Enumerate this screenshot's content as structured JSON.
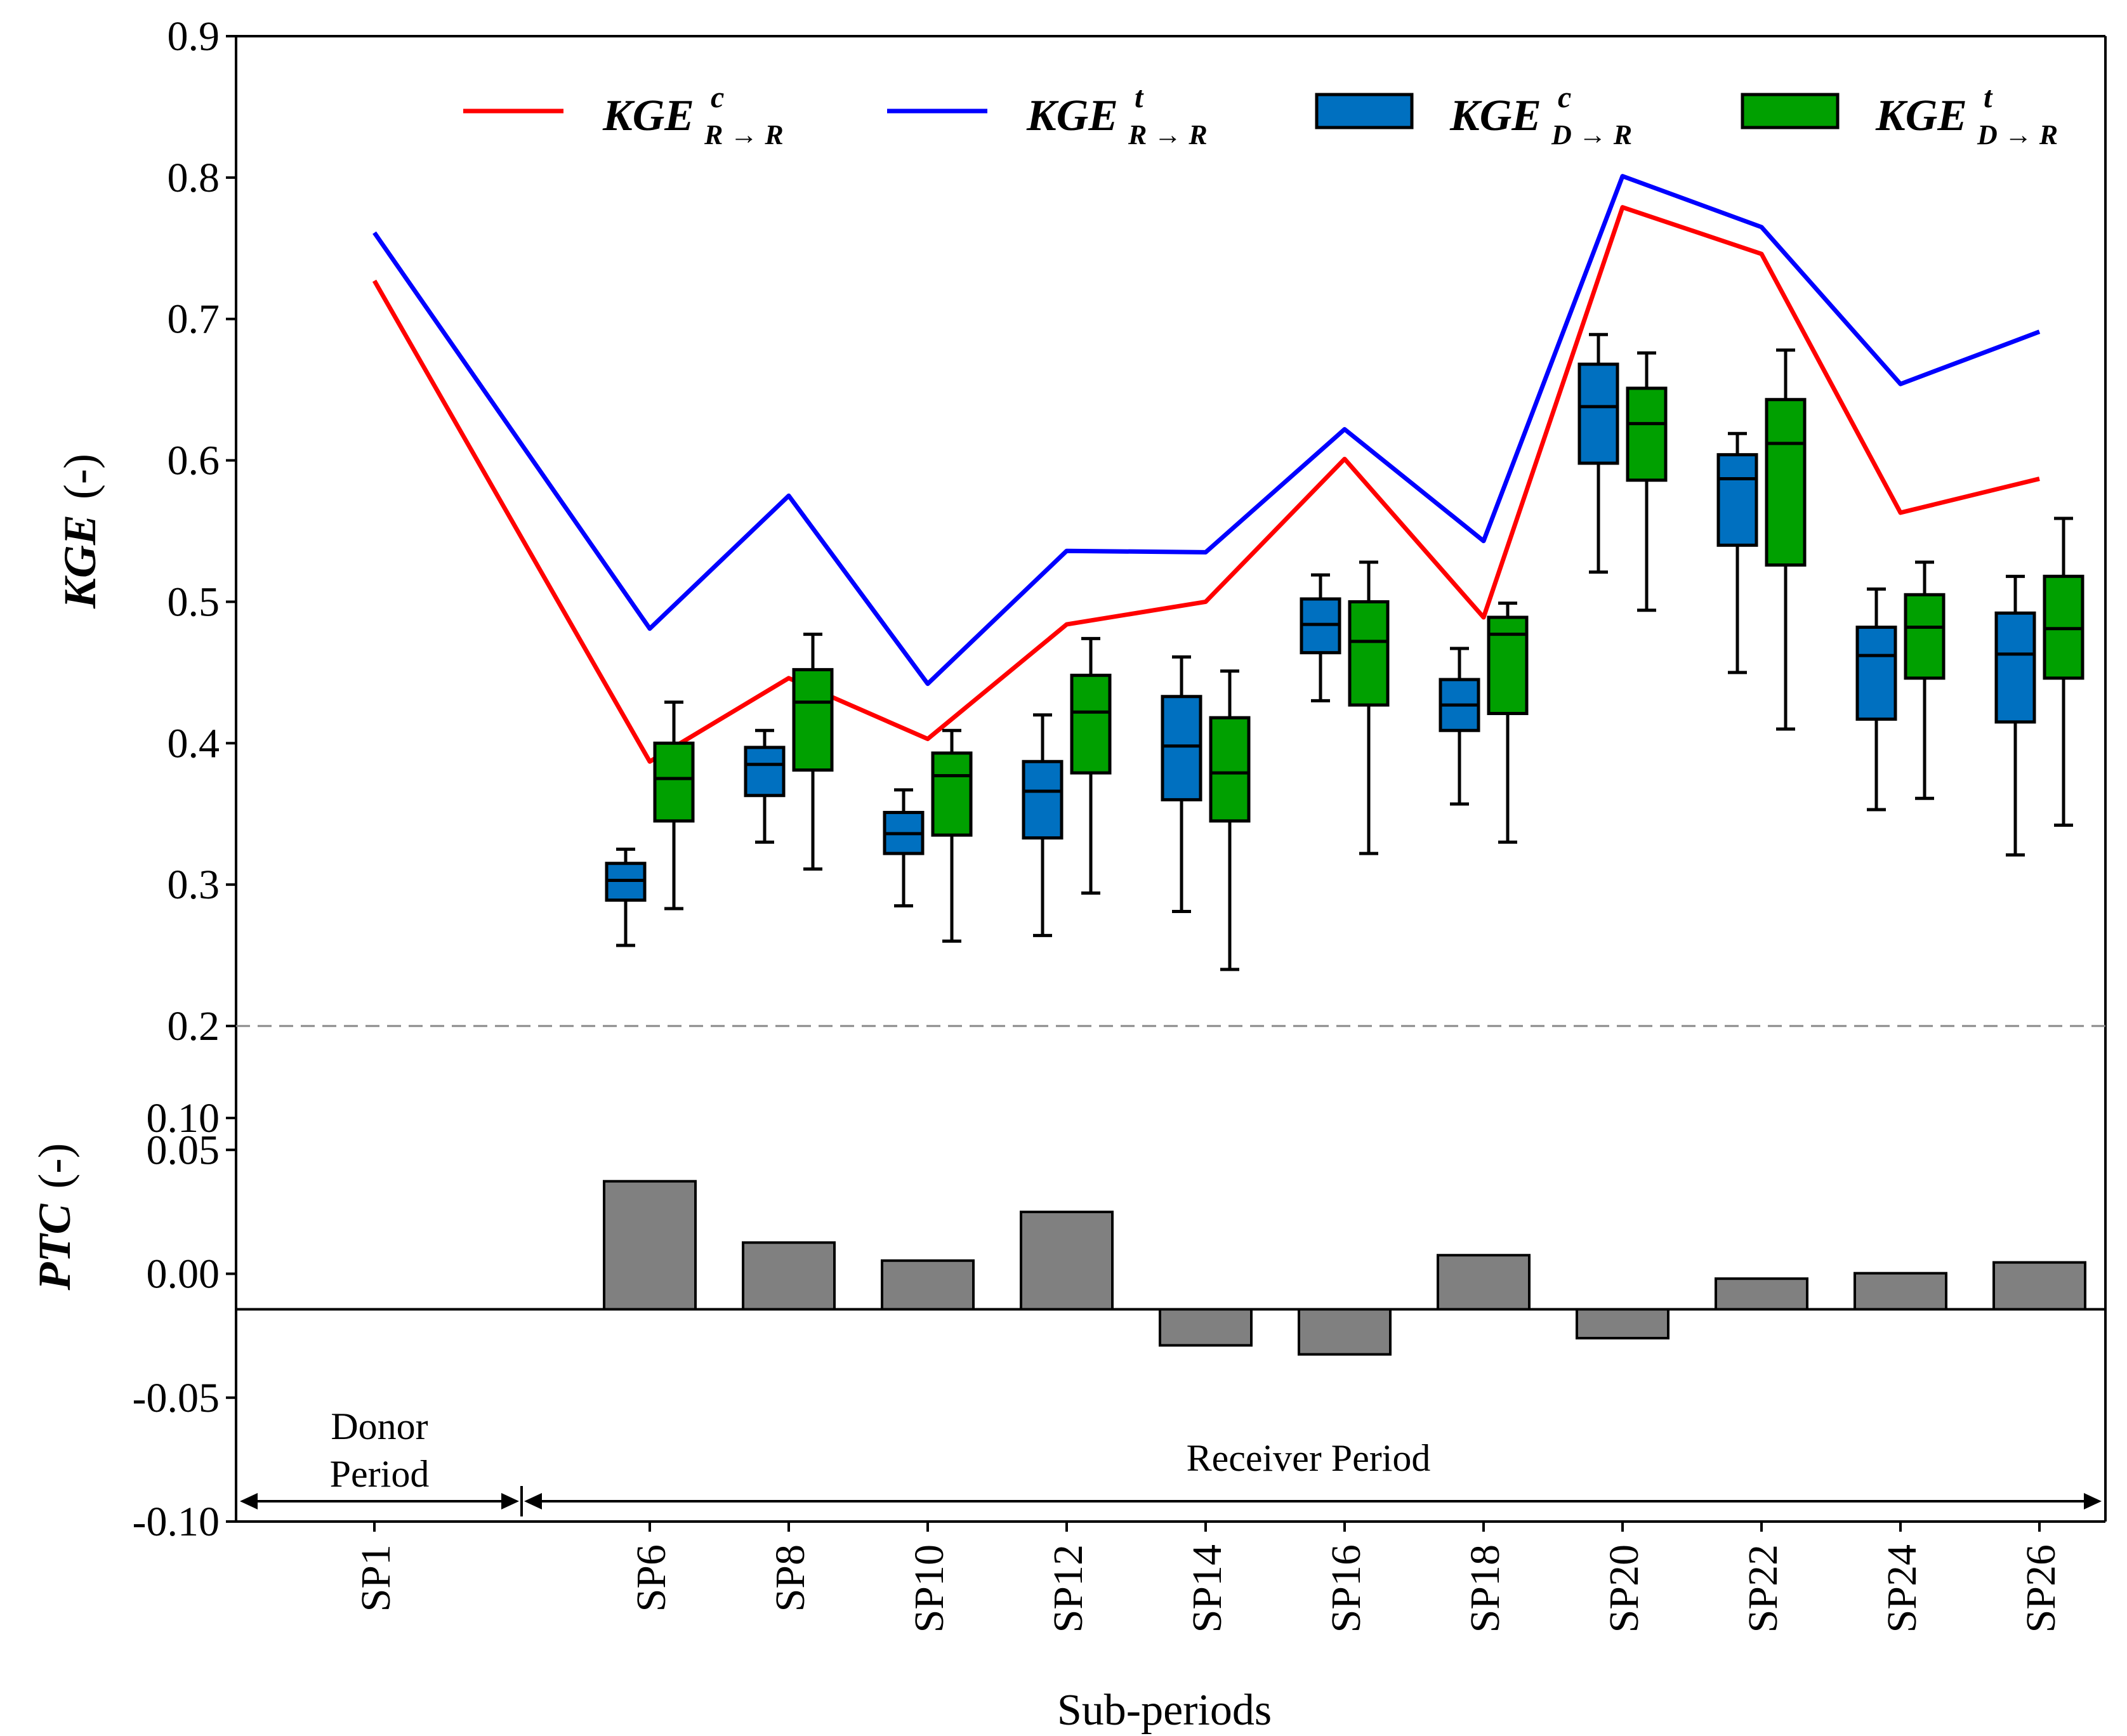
{
  "chart_data": {
    "type": "box+line+bar",
    "xlabel": "Sub-periods",
    "categories": [
      "SP1",
      "SP6",
      "SP8",
      "SP10",
      "SP12",
      "SP14",
      "SP16",
      "SP18",
      "SP20",
      "SP22",
      "SP24",
      "SP26"
    ],
    "top_panel": {
      "ylabel_main": "KGE",
      "ylabel_unit": "(-)",
      "ylim": [
        0.2,
        0.9
      ],
      "yticks": [
        "0.2",
        "0.3",
        "0.4",
        "0.5",
        "0.6",
        "0.7",
        "0.8",
        "0.9"
      ],
      "lines": [
        {
          "name": "KGE^c_{R→R}",
          "color": "#ff0000",
          "values": [
            0.727,
            0.387,
            0.446,
            0.403,
            0.484,
            0.5,
            0.601,
            0.489,
            0.779,
            0.746,
            0.563,
            0.587
          ]
        },
        {
          "name": "KGE^t_{R→R}",
          "color": "#0000ff",
          "values": [
            0.761,
            0.481,
            0.575,
            0.442,
            0.536,
            0.535,
            0.622,
            0.543,
            0.801,
            0.765,
            0.654,
            0.691
          ]
        }
      ],
      "boxes": [
        {
          "name": "KGE^c_{D→R}",
          "color": "#0070c0",
          "data": [
            null,
            {
              "whislo": 0.257,
              "q1": 0.289,
              "med": 0.303,
              "q3": 0.315,
              "whishi": 0.325
            },
            {
              "whislo": 0.33,
              "q1": 0.363,
              "med": 0.385,
              "q3": 0.397,
              "whishi": 0.409
            },
            {
              "whislo": 0.285,
              "q1": 0.322,
              "med": 0.336,
              "q3": 0.351,
              "whishi": 0.367
            },
            {
              "whislo": 0.264,
              "q1": 0.333,
              "med": 0.366,
              "q3": 0.387,
              "whishi": 0.42
            },
            {
              "whislo": 0.281,
              "q1": 0.36,
              "med": 0.398,
              "q3": 0.433,
              "whishi": 0.461
            },
            {
              "whislo": 0.43,
              "q1": 0.464,
              "med": 0.484,
              "q3": 0.502,
              "whishi": 0.519
            },
            {
              "whislo": 0.357,
              "q1": 0.409,
              "med": 0.427,
              "q3": 0.445,
              "whishi": 0.467
            },
            {
              "whislo": 0.521,
              "q1": 0.598,
              "med": 0.638,
              "q3": 0.668,
              "whishi": 0.689
            },
            {
              "whislo": 0.45,
              "q1": 0.54,
              "med": 0.587,
              "q3": 0.604,
              "whishi": 0.619
            },
            {
              "whislo": 0.353,
              "q1": 0.417,
              "med": 0.462,
              "q3": 0.482,
              "whishi": 0.509
            },
            {
              "whislo": 0.321,
              "q1": 0.415,
              "med": 0.463,
              "q3": 0.492,
              "whishi": 0.518
            }
          ]
        },
        {
          "name": "KGE^t_{D→R}",
          "color": "#00a000",
          "data": [
            null,
            {
              "whislo": 0.283,
              "q1": 0.345,
              "med": 0.375,
              "q3": 0.4,
              "whishi": 0.429
            },
            {
              "whislo": 0.311,
              "q1": 0.381,
              "med": 0.429,
              "q3": 0.452,
              "whishi": 0.477
            },
            {
              "whislo": 0.26,
              "q1": 0.335,
              "med": 0.377,
              "q3": 0.393,
              "whishi": 0.409
            },
            {
              "whislo": 0.294,
              "q1": 0.379,
              "med": 0.422,
              "q3": 0.448,
              "whishi": 0.474
            },
            {
              "whislo": 0.24,
              "q1": 0.345,
              "med": 0.379,
              "q3": 0.418,
              "whishi": 0.451
            },
            {
              "whislo": 0.322,
              "q1": 0.427,
              "med": 0.472,
              "q3": 0.5,
              "whishi": 0.528
            },
            {
              "whislo": 0.33,
              "q1": 0.421,
              "med": 0.477,
              "q3": 0.489,
              "whishi": 0.499
            },
            {
              "whislo": 0.494,
              "q1": 0.586,
              "med": 0.626,
              "q3": 0.651,
              "whishi": 0.676
            },
            {
              "whislo": 0.41,
              "q1": 0.526,
              "med": 0.612,
              "q3": 0.643,
              "whishi": 0.678
            },
            {
              "whislo": 0.361,
              "q1": 0.446,
              "med": 0.482,
              "q3": 0.505,
              "whishi": 0.528
            },
            {
              "whislo": 0.342,
              "q1": 0.446,
              "med": 0.481,
              "q3": 0.518,
              "whishi": 0.559
            }
          ]
        }
      ]
    },
    "bottom_panel": {
      "ylabel_main": "PTC",
      "ylabel_unit": "(-)",
      "ylim": [
        -0.1,
        0.1
      ],
      "yticks": [
        "-0.10",
        "-0.05",
        "0.00",
        "0.05",
        "0.10"
      ],
      "bar_color": "#808080",
      "values": [
        null,
        0.071,
        0.037,
        0.027,
        0.054,
        -0.02,
        -0.025,
        0.03,
        -0.016,
        0.017,
        0.02,
        0.026
      ]
    },
    "annotations": {
      "donor_line1": "Donor",
      "donor_line2": "Period",
      "receiver": "Receiver Period"
    },
    "legend": {
      "placement": "top",
      "entries": [
        {
          "kind": "line",
          "base": "KGE",
          "sup": "c",
          "sub": "R → R",
          "color": "#ff0000"
        },
        {
          "kind": "line",
          "base": "KGE",
          "sup": "t",
          "sub": "R → R",
          "color": "#0000ff"
        },
        {
          "kind": "box",
          "base": "KGE",
          "sup": "c",
          "sub": "D → R",
          "color": "#0070c0"
        },
        {
          "kind": "box",
          "base": "KGE",
          "sup": "t",
          "sub": "D → R",
          "color": "#00a000"
        }
      ]
    }
  }
}
